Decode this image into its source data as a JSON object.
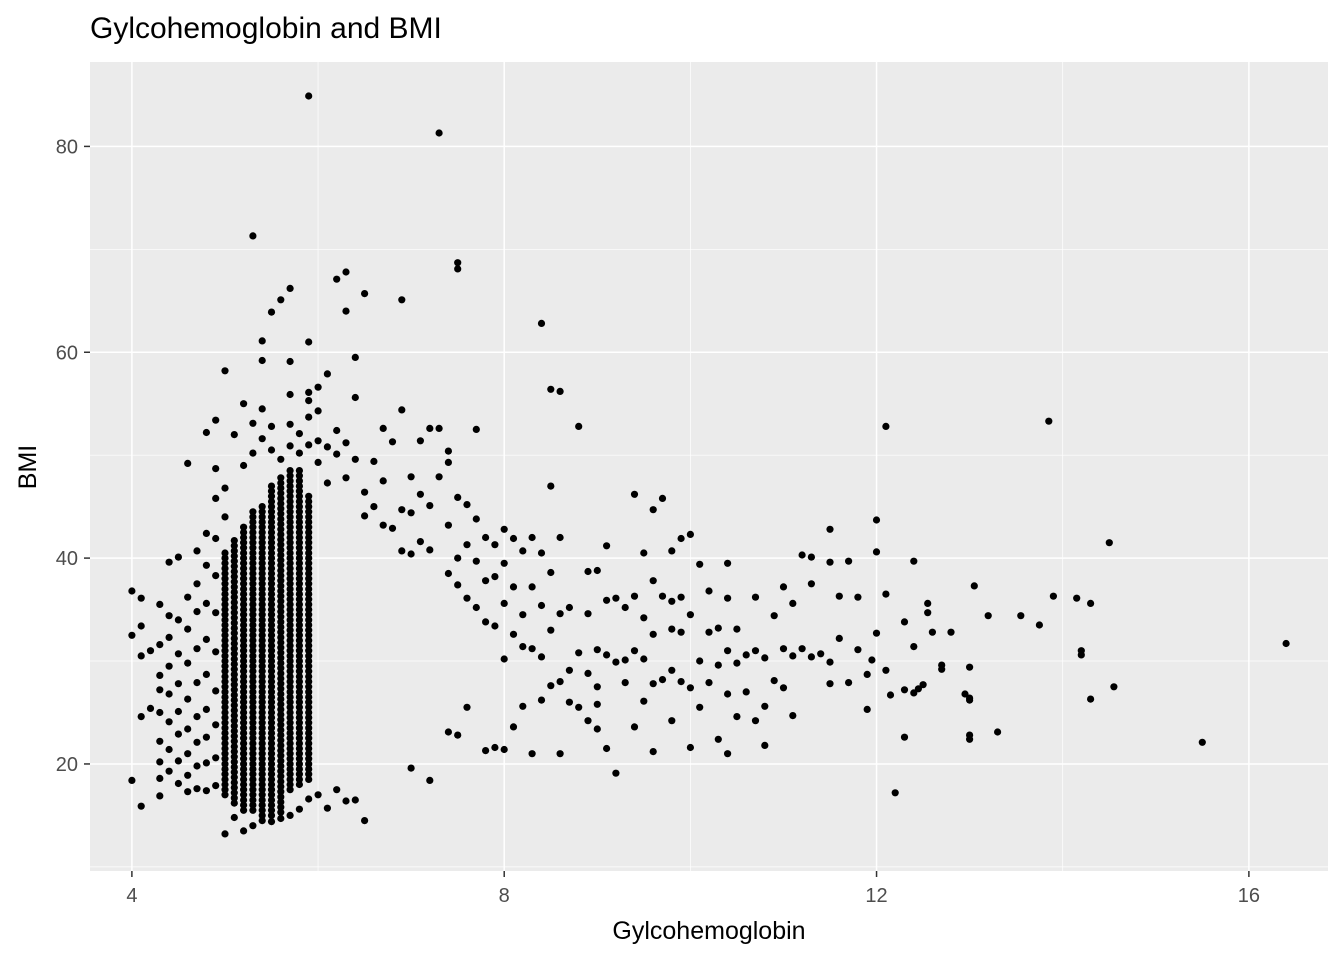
{
  "chart_data": {
    "type": "scatter",
    "title": "Gylcohemoglobin and BMI",
    "xlabel": "Gylcohemoglobin",
    "ylabel": "BMI",
    "xlim": [
      3.55,
      16.85
    ],
    "ylim": [
      9.6,
      88.2
    ],
    "x_ticks": [
      4,
      8,
      12,
      16
    ],
    "y_ticks": [
      20,
      40,
      60,
      80
    ],
    "grid": true,
    "legend": "none",
    "colors": {
      "panel": "#ebebeb",
      "grid_major": "#ffffff",
      "points": "#000000"
    },
    "dense_cluster": {
      "x_values": [
        5.0,
        5.1,
        5.2,
        5.3,
        5.4,
        5.5,
        5.6,
        5.7,
        5.8,
        5.9
      ],
      "y_min": [
        17.0,
        16.2,
        15.5,
        15.5,
        15.0,
        15.0,
        15.3,
        17.5,
        18.0,
        18.5
      ],
      "y_max": [
        40.5,
        42.0,
        43.0,
        44.5,
        45.0,
        47.0,
        48.0,
        48.5,
        48.5,
        46.0
      ]
    },
    "points": [
      [
        4.0,
        36.8
      ],
      [
        4.0,
        32.5
      ],
      [
        4.0,
        18.4
      ],
      [
        4.1,
        36.1
      ],
      [
        4.1,
        33.4
      ],
      [
        4.1,
        30.5
      ],
      [
        4.1,
        24.6
      ],
      [
        4.1,
        15.9
      ],
      [
        4.2,
        31.0
      ],
      [
        4.2,
        25.4
      ],
      [
        4.3,
        35.5
      ],
      [
        4.3,
        31.6
      ],
      [
        4.3,
        28.6
      ],
      [
        4.3,
        27.2
      ],
      [
        4.3,
        25.0
      ],
      [
        4.3,
        22.2
      ],
      [
        4.3,
        20.2
      ],
      [
        4.3,
        18.6
      ],
      [
        4.3,
        16.9
      ],
      [
        4.4,
        39.6
      ],
      [
        4.4,
        34.4
      ],
      [
        4.4,
        32.3
      ],
      [
        4.4,
        29.5
      ],
      [
        4.4,
        26.8
      ],
      [
        4.4,
        24.1
      ],
      [
        4.4,
        21.4
      ],
      [
        4.4,
        19.3
      ],
      [
        4.5,
        40.1
      ],
      [
        4.5,
        34.0
      ],
      [
        4.5,
        30.7
      ],
      [
        4.5,
        27.8
      ],
      [
        4.5,
        25.1
      ],
      [
        4.5,
        22.9
      ],
      [
        4.5,
        20.3
      ],
      [
        4.5,
        18.1
      ],
      [
        4.6,
        49.2
      ],
      [
        4.6,
        36.2
      ],
      [
        4.6,
        33.1
      ],
      [
        4.6,
        29.8
      ],
      [
        4.6,
        26.3
      ],
      [
        4.6,
        23.4
      ],
      [
        4.6,
        21.0
      ],
      [
        4.6,
        18.9
      ],
      [
        4.6,
        17.3
      ],
      [
        4.7,
        40.7
      ],
      [
        4.7,
        37.5
      ],
      [
        4.7,
        34.8
      ],
      [
        4.7,
        31.2
      ],
      [
        4.7,
        27.9
      ],
      [
        4.7,
        24.6
      ],
      [
        4.7,
        22.1
      ],
      [
        4.7,
        19.8
      ],
      [
        4.7,
        17.6
      ],
      [
        4.8,
        52.2
      ],
      [
        4.8,
        42.4
      ],
      [
        4.8,
        39.3
      ],
      [
        4.8,
        35.6
      ],
      [
        4.8,
        32.1
      ],
      [
        4.8,
        28.7
      ],
      [
        4.8,
        25.3
      ],
      [
        4.8,
        22.6
      ],
      [
        4.8,
        20.1
      ],
      [
        4.8,
        17.4
      ],
      [
        4.9,
        53.4
      ],
      [
        4.9,
        48.7
      ],
      [
        4.9,
        45.8
      ],
      [
        4.9,
        41.9
      ],
      [
        4.9,
        38.3
      ],
      [
        4.9,
        34.7
      ],
      [
        4.9,
        30.9
      ],
      [
        4.9,
        27.1
      ],
      [
        4.9,
        23.8
      ],
      [
        4.9,
        20.6
      ],
      [
        4.9,
        17.9
      ],
      [
        5.0,
        58.2
      ],
      [
        5.0,
        46.8
      ],
      [
        5.0,
        44.0
      ],
      [
        5.0,
        13.2
      ],
      [
        5.1,
        52.0
      ],
      [
        5.1,
        14.8
      ],
      [
        5.2,
        55.0
      ],
      [
        5.2,
        49.0
      ],
      [
        5.2,
        13.5
      ],
      [
        5.3,
        71.3
      ],
      [
        5.3,
        53.1
      ],
      [
        5.3,
        50.2
      ],
      [
        5.3,
        14.0
      ],
      [
        5.4,
        61.1
      ],
      [
        5.4,
        59.2
      ],
      [
        5.4,
        54.5
      ],
      [
        5.4,
        51.6
      ],
      [
        5.4,
        14.5
      ],
      [
        5.5,
        63.9
      ],
      [
        5.5,
        52.8
      ],
      [
        5.5,
        50.5
      ],
      [
        5.5,
        14.4
      ],
      [
        5.6,
        65.1
      ],
      [
        5.6,
        49.6
      ],
      [
        5.6,
        14.7
      ],
      [
        5.7,
        66.2
      ],
      [
        5.7,
        59.1
      ],
      [
        5.7,
        55.9
      ],
      [
        5.7,
        53.0
      ],
      [
        5.7,
        50.9
      ],
      [
        5.7,
        15.0
      ],
      [
        5.8,
        52.1
      ],
      [
        5.8,
        50.2
      ],
      [
        5.8,
        15.6
      ],
      [
        5.9,
        84.9
      ],
      [
        5.9,
        61.0
      ],
      [
        5.9,
        56.1
      ],
      [
        5.9,
        55.3
      ],
      [
        5.9,
        53.7
      ],
      [
        5.9,
        51.0
      ],
      [
        5.9,
        16.6
      ],
      [
        6.0,
        56.6
      ],
      [
        6.0,
        54.3
      ],
      [
        6.0,
        51.4
      ],
      [
        6.0,
        49.3
      ],
      [
        6.0,
        17.0
      ],
      [
        6.1,
        57.9
      ],
      [
        6.1,
        50.8
      ],
      [
        6.1,
        47.3
      ],
      [
        6.1,
        15.7
      ],
      [
        6.2,
        67.1
      ],
      [
        6.2,
        52.4
      ],
      [
        6.2,
        50.1
      ],
      [
        6.2,
        17.5
      ],
      [
        6.3,
        67.8
      ],
      [
        6.3,
        64.0
      ],
      [
        6.3,
        51.2
      ],
      [
        6.3,
        47.8
      ],
      [
        6.3,
        16.4
      ],
      [
        6.4,
        59.5
      ],
      [
        6.4,
        55.6
      ],
      [
        6.4,
        49.6
      ],
      [
        6.4,
        16.5
      ],
      [
        6.5,
        65.7
      ],
      [
        6.5,
        46.4
      ],
      [
        6.5,
        44.1
      ],
      [
        6.5,
        14.5
      ],
      [
        6.6,
        49.4
      ],
      [
        6.6,
        45.0
      ],
      [
        6.7,
        52.6
      ],
      [
        6.7,
        47.5
      ],
      [
        6.7,
        43.2
      ],
      [
        6.8,
        51.3
      ],
      [
        6.8,
        42.9
      ],
      [
        6.9,
        65.1
      ],
      [
        6.9,
        54.4
      ],
      [
        6.9,
        44.7
      ],
      [
        6.9,
        40.7
      ],
      [
        7.0,
        47.9
      ],
      [
        7.0,
        44.4
      ],
      [
        7.0,
        40.4
      ],
      [
        7.0,
        19.6
      ],
      [
        7.1,
        51.4
      ],
      [
        7.1,
        46.2
      ],
      [
        7.1,
        41.6
      ],
      [
        7.2,
        52.6
      ],
      [
        7.2,
        45.1
      ],
      [
        7.2,
        40.8
      ],
      [
        7.2,
        18.4
      ],
      [
        7.3,
        81.3
      ],
      [
        7.3,
        52.6
      ],
      [
        7.3,
        47.9
      ],
      [
        7.4,
        50.4
      ],
      [
        7.4,
        49.3
      ],
      [
        7.4,
        43.2
      ],
      [
        7.4,
        38.5
      ],
      [
        7.4,
        23.1
      ],
      [
        7.5,
        68.7
      ],
      [
        7.5,
        68.1
      ],
      [
        7.5,
        45.9
      ],
      [
        7.5,
        40.0
      ],
      [
        7.5,
        37.4
      ],
      [
        7.5,
        22.8
      ],
      [
        7.6,
        45.2
      ],
      [
        7.6,
        41.3
      ],
      [
        7.6,
        36.1
      ],
      [
        7.6,
        25.5
      ],
      [
        7.7,
        52.5
      ],
      [
        7.7,
        43.8
      ],
      [
        7.7,
        39.7
      ],
      [
        7.7,
        35.2
      ],
      [
        7.8,
        42.0
      ],
      [
        7.8,
        37.8
      ],
      [
        7.8,
        33.8
      ],
      [
        7.8,
        21.3
      ],
      [
        7.9,
        41.3
      ],
      [
        7.9,
        38.2
      ],
      [
        7.9,
        33.4
      ],
      [
        7.9,
        21.6
      ],
      [
        8.0,
        42.8
      ],
      [
        8.0,
        39.5
      ],
      [
        8.0,
        35.6
      ],
      [
        8.0,
        30.2
      ],
      [
        8.0,
        21.4
      ],
      [
        8.1,
        41.9
      ],
      [
        8.1,
        37.2
      ],
      [
        8.1,
        32.6
      ],
      [
        8.1,
        23.6
      ],
      [
        8.2,
        40.7
      ],
      [
        8.2,
        34.5
      ],
      [
        8.2,
        31.4
      ],
      [
        8.2,
        25.6
      ],
      [
        8.3,
        42.0
      ],
      [
        8.3,
        37.2
      ],
      [
        8.3,
        31.2
      ],
      [
        8.3,
        21.0
      ],
      [
        8.4,
        62.8
      ],
      [
        8.4,
        40.5
      ],
      [
        8.4,
        35.4
      ],
      [
        8.4,
        30.4
      ],
      [
        8.4,
        26.2
      ],
      [
        8.5,
        56.4
      ],
      [
        8.5,
        47.0
      ],
      [
        8.5,
        38.6
      ],
      [
        8.5,
        33.0
      ],
      [
        8.5,
        27.6
      ],
      [
        8.6,
        56.2
      ],
      [
        8.6,
        42.0
      ],
      [
        8.6,
        34.6
      ],
      [
        8.6,
        28.0
      ],
      [
        8.6,
        21.0
      ],
      [
        8.7,
        35.2
      ],
      [
        8.7,
        29.1
      ],
      [
        8.7,
        26.0
      ],
      [
        8.8,
        52.8
      ],
      [
        8.8,
        30.8
      ],
      [
        8.8,
        25.5
      ],
      [
        8.9,
        38.7
      ],
      [
        8.9,
        34.6
      ],
      [
        8.9,
        28.8
      ],
      [
        8.9,
        24.2
      ],
      [
        9.0,
        38.8
      ],
      [
        9.0,
        31.1
      ],
      [
        9.0,
        27.5
      ],
      [
        9.0,
        25.8
      ],
      [
        9.0,
        23.4
      ],
      [
        9.1,
        41.2
      ],
      [
        9.1,
        35.9
      ],
      [
        9.1,
        30.6
      ],
      [
        9.1,
        21.5
      ],
      [
        9.2,
        36.1
      ],
      [
        9.2,
        29.9
      ],
      [
        9.2,
        19.1
      ],
      [
        9.3,
        35.2
      ],
      [
        9.3,
        30.1
      ],
      [
        9.3,
        27.9
      ],
      [
        9.4,
        46.2
      ],
      [
        9.4,
        36.3
      ],
      [
        9.4,
        31.0
      ],
      [
        9.4,
        23.6
      ],
      [
        9.5,
        40.5
      ],
      [
        9.5,
        34.2
      ],
      [
        9.5,
        30.2
      ],
      [
        9.5,
        26.1
      ],
      [
        9.6,
        44.7
      ],
      [
        9.6,
        37.8
      ],
      [
        9.6,
        32.6
      ],
      [
        9.6,
        27.8
      ],
      [
        9.6,
        21.2
      ],
      [
        9.7,
        45.8
      ],
      [
        9.7,
        36.3
      ],
      [
        9.7,
        28.2
      ],
      [
        9.8,
        40.7
      ],
      [
        9.8,
        35.8
      ],
      [
        9.8,
        33.1
      ],
      [
        9.8,
        29.1
      ],
      [
        9.8,
        24.2
      ],
      [
        9.9,
        41.9
      ],
      [
        9.9,
        36.2
      ],
      [
        9.9,
        32.8
      ],
      [
        9.9,
        28.0
      ],
      [
        10.0,
        42.3
      ],
      [
        10.0,
        34.5
      ],
      [
        10.0,
        27.4
      ],
      [
        10.0,
        21.6
      ],
      [
        10.1,
        39.4
      ],
      [
        10.1,
        30.0
      ],
      [
        10.1,
        25.5
      ],
      [
        10.2,
        36.8
      ],
      [
        10.2,
        32.8
      ],
      [
        10.2,
        27.9
      ],
      [
        10.3,
        33.2
      ],
      [
        10.3,
        29.6
      ],
      [
        10.3,
        22.4
      ],
      [
        10.4,
        39.5
      ],
      [
        10.4,
        36.1
      ],
      [
        10.4,
        31.0
      ],
      [
        10.4,
        26.8
      ],
      [
        10.4,
        21.0
      ],
      [
        10.5,
        33.1
      ],
      [
        10.5,
        29.8
      ],
      [
        10.5,
        24.6
      ],
      [
        10.6,
        30.6
      ],
      [
        10.6,
        27.0
      ],
      [
        10.7,
        36.2
      ],
      [
        10.7,
        31.0
      ],
      [
        10.7,
        24.2
      ],
      [
        10.8,
        30.3
      ],
      [
        10.8,
        25.6
      ],
      [
        10.8,
        21.8
      ],
      [
        10.9,
        34.4
      ],
      [
        10.9,
        28.1
      ],
      [
        11.0,
        37.2
      ],
      [
        11.0,
        31.2
      ],
      [
        11.0,
        27.4
      ],
      [
        11.1,
        35.6
      ],
      [
        11.1,
        30.5
      ],
      [
        11.1,
        24.7
      ],
      [
        11.2,
        40.3
      ],
      [
        11.2,
        31.2
      ],
      [
        11.3,
        40.1
      ],
      [
        11.3,
        37.5
      ],
      [
        11.3,
        30.4
      ],
      [
        11.4,
        30.7
      ],
      [
        11.5,
        42.8
      ],
      [
        11.5,
        39.6
      ],
      [
        11.5,
        29.9
      ],
      [
        11.5,
        27.8
      ],
      [
        11.6,
        36.3
      ],
      [
        11.6,
        32.2
      ],
      [
        11.7,
        39.7
      ],
      [
        11.7,
        27.9
      ],
      [
        11.8,
        36.2
      ],
      [
        11.8,
        31.1
      ],
      [
        11.9,
        25.3
      ],
      [
        11.9,
        28.7
      ],
      [
        11.95,
        30.1
      ],
      [
        12.0,
        43.7
      ],
      [
        12.0,
        40.6
      ],
      [
        12.0,
        32.7
      ],
      [
        12.1,
        52.8
      ],
      [
        12.1,
        36.5
      ],
      [
        12.1,
        29.1
      ],
      [
        12.15,
        26.7
      ],
      [
        12.2,
        17.2
      ],
      [
        12.3,
        33.8
      ],
      [
        12.3,
        27.2
      ],
      [
        12.3,
        22.6
      ],
      [
        12.4,
        39.7
      ],
      [
        12.4,
        31.4
      ],
      [
        12.4,
        26.9
      ],
      [
        12.45,
        27.3
      ],
      [
        12.5,
        27.7
      ],
      [
        12.55,
        35.6
      ],
      [
        12.55,
        34.7
      ],
      [
        12.6,
        32.8
      ],
      [
        12.7,
        29.6
      ],
      [
        12.7,
        29.2
      ],
      [
        12.8,
        32.8
      ],
      [
        12.95,
        26.8
      ],
      [
        13.0,
        26.4
      ],
      [
        13.0,
        26.2
      ],
      [
        13.0,
        22.8
      ],
      [
        13.0,
        22.4
      ],
      [
        13.0,
        29.4
      ],
      [
        13.05,
        37.3
      ],
      [
        13.2,
        34.4
      ],
      [
        13.3,
        23.1
      ],
      [
        13.55,
        34.4
      ],
      [
        13.75,
        33.5
      ],
      [
        13.9,
        36.3
      ],
      [
        14.15,
        36.1
      ],
      [
        14.2,
        30.6
      ],
      [
        14.3,
        26.3
      ],
      [
        14.5,
        41.5
      ],
      [
        13.85,
        53.3
      ],
      [
        14.2,
        31.0
      ],
      [
        14.3,
        35.6
      ],
      [
        14.55,
        27.5
      ],
      [
        15.5,
        22.1
      ],
      [
        16.4,
        31.7
      ]
    ]
  }
}
